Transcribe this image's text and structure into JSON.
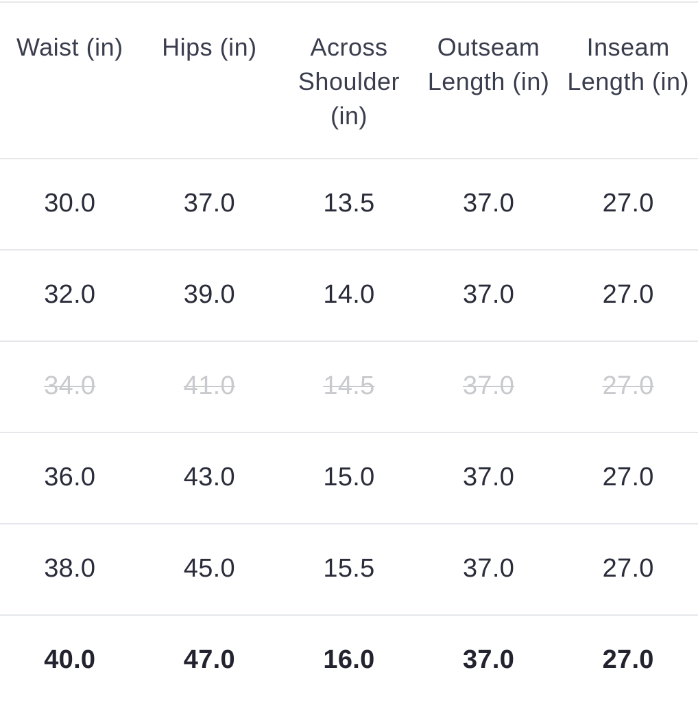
{
  "table": {
    "headers": [
      "Waist (in)",
      "Hips (in)",
      "Across Shoulder (in)",
      "Outseam Length (in)",
      "Inseam Length (in)"
    ],
    "rows": [
      {
        "status": "available",
        "cells": [
          "30.0",
          "37.0",
          "13.5",
          "37.0",
          "27.0"
        ]
      },
      {
        "status": "available",
        "cells": [
          "32.0",
          "39.0",
          "14.0",
          "37.0",
          "27.0"
        ]
      },
      {
        "status": "unavailable",
        "cells": [
          "34.0",
          "41.0",
          "14.5",
          "37.0",
          "27.0"
        ]
      },
      {
        "status": "available",
        "cells": [
          "36.0",
          "43.0",
          "15.0",
          "37.0",
          "27.0"
        ]
      },
      {
        "status": "available",
        "cells": [
          "38.0",
          "45.0",
          "15.5",
          "37.0",
          "27.0"
        ]
      },
      {
        "status": "selected",
        "cells": [
          "40.0",
          "47.0",
          "16.0",
          "37.0",
          "27.0"
        ]
      }
    ]
  },
  "colors": {
    "text": "#2a2c3a",
    "header_text": "#3a3d4d",
    "unavailable_text": "#c9cace",
    "divider": "#e6e7ea",
    "background": "#ffffff"
  }
}
